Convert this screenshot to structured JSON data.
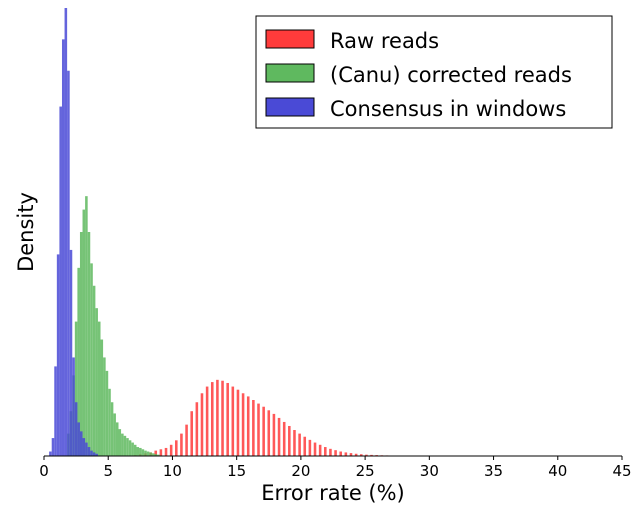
{
  "chart_data": {
    "type": "bar",
    "xlabel": "Error rate (%)",
    "ylabel": "Density",
    "xlim": [
      0,
      45
    ],
    "ylim": [
      0,
      1.0
    ],
    "xticks": [
      0,
      5,
      10,
      15,
      20,
      25,
      30,
      35,
      40,
      45
    ],
    "yticks": [],
    "grid": false,
    "legend_position": "top-right",
    "bin_width": 0.2,
    "series": [
      {
        "name": "Raw reads",
        "color": "#ff3b3b",
        "x": [
          7.0,
          7.4,
          7.8,
          8.2,
          8.6,
          9.0,
          9.4,
          9.8,
          10.2,
          10.6,
          11.0,
          11.4,
          11.8,
          12.2,
          12.6,
          13.0,
          13.4,
          13.8,
          14.2,
          14.6,
          15.0,
          15.4,
          15.8,
          16.2,
          16.6,
          17.0,
          17.4,
          17.8,
          18.2,
          18.6,
          19.0,
          19.4,
          19.8,
          20.2,
          20.6,
          21.0,
          21.4,
          21.8,
          22.2,
          22.6,
          23.0,
          23.4,
          23.8,
          24.2,
          24.6,
          25.0,
          25.4,
          25.8,
          26.2,
          26.6,
          27.0,
          27.4,
          27.8,
          28.2,
          28.6,
          29.0,
          29.4,
          29.8,
          30.2,
          30.6,
          31.0,
          31.4,
          31.8,
          32.2,
          32.6,
          33.0,
          33.4,
          33.8,
          34.2,
          34.6,
          35.0,
          35.4,
          35.8,
          36.2,
          36.6,
          37.0,
          37.4,
          37.8,
          38.2,
          38.6,
          39.0,
          39.4,
          39.8,
          40.2
        ],
        "values": [
          0.002,
          0.004,
          0.006,
          0.008,
          0.012,
          0.015,
          0.018,
          0.025,
          0.035,
          0.05,
          0.07,
          0.1,
          0.12,
          0.14,
          0.155,
          0.165,
          0.17,
          0.168,
          0.163,
          0.155,
          0.148,
          0.14,
          0.133,
          0.125,
          0.117,
          0.11,
          0.102,
          0.094,
          0.085,
          0.076,
          0.067,
          0.058,
          0.05,
          0.043,
          0.036,
          0.03,
          0.025,
          0.02,
          0.016,
          0.013,
          0.01,
          0.008,
          0.0065,
          0.005,
          0.004,
          0.003,
          0.0025,
          0.002,
          0.0016,
          0.0013,
          0.001,
          0.0008,
          0.0007,
          0.0006,
          0.0005,
          0.0004,
          0.0003,
          0.0003,
          0.0003,
          0.0002,
          0.0002,
          0.0002,
          0.0002,
          0.0002,
          0.0002,
          0.0002,
          0.0002,
          0.0002,
          0.0002,
          0.0002,
          0.0002,
          0.0002,
          0.0002,
          0.0002,
          0.0002,
          0.0002,
          0.0002,
          0.0002,
          0.0002,
          0.0002,
          0.0002,
          0.0002,
          0.0002,
          0.0002
        ]
      },
      {
        "name": "(Canu) corrected reads",
        "color": "#5fb95f",
        "x": [
          1.8,
          2.0,
          2.2,
          2.4,
          2.6,
          2.8,
          3.0,
          3.2,
          3.4,
          3.6,
          3.8,
          4.0,
          4.2,
          4.4,
          4.6,
          4.8,
          5.0,
          5.2,
          5.4,
          5.6,
          5.8,
          6.0,
          6.2,
          6.4,
          6.6,
          6.8,
          7.0,
          7.2,
          7.4,
          7.6,
          7.8,
          8.0,
          8.2,
          8.4,
          8.6,
          8.8
        ],
        "values": [
          0.05,
          0.1,
          0.18,
          0.3,
          0.42,
          0.5,
          0.55,
          0.58,
          0.5,
          0.43,
          0.38,
          0.33,
          0.3,
          0.26,
          0.22,
          0.19,
          0.15,
          0.12,
          0.095,
          0.075,
          0.06,
          0.05,
          0.045,
          0.04,
          0.035,
          0.03,
          0.025,
          0.02,
          0.018,
          0.015,
          0.012,
          0.01,
          0.008,
          0.006,
          0.004,
          0.003
        ]
      },
      {
        "name": "Consensus in windows",
        "color": "#4a4ad6",
        "x": [
          0.4,
          0.6,
          0.8,
          1.0,
          1.2,
          1.4,
          1.6,
          1.8,
          2.0,
          2.2,
          2.4,
          2.6,
          2.8,
          3.0,
          3.2,
          3.4,
          3.6,
          3.8,
          4.0
        ],
        "values": [
          0.01,
          0.04,
          0.2,
          0.45,
          0.78,
          0.93,
          1.0,
          0.86,
          0.46,
          0.22,
          0.12,
          0.075,
          0.055,
          0.04,
          0.03,
          0.02,
          0.012,
          0.008,
          0.005
        ]
      }
    ]
  }
}
